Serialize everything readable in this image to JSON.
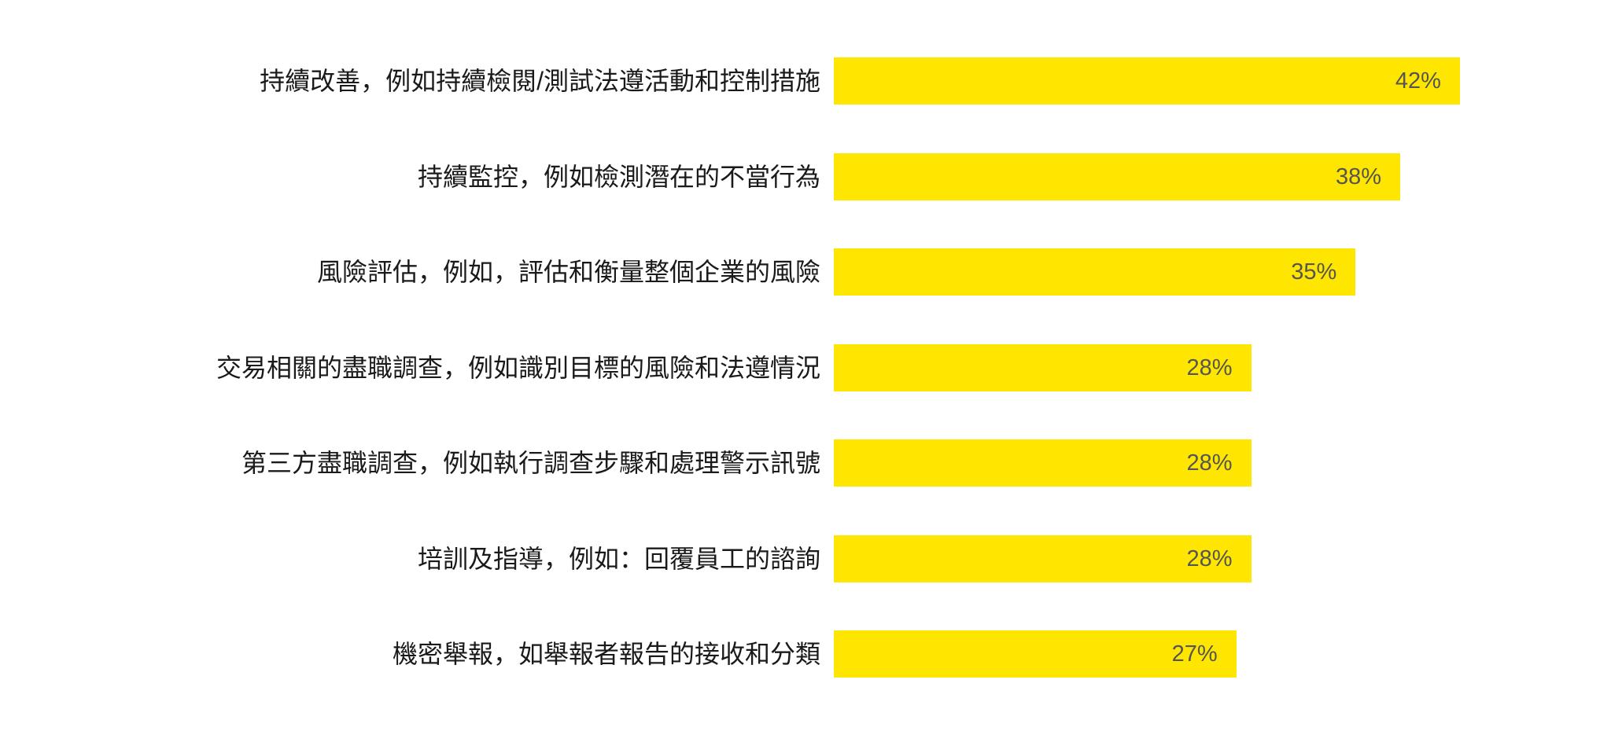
{
  "chart_data": {
    "type": "bar",
    "orientation": "horizontal",
    "categories": [
      "持續改善，例如持續檢閱/測試法遵活動和控制措施",
      "持續監控，例如檢測潛在的不當行為",
      "風險評估，例如，評估和衡量整個企業的風險",
      "交易相關的盡職調查，例如識別目標的風險和法遵情況",
      "第三方盡職調查，例如執行調查步驟和處理警示訊號",
      "培訓及指導，例如：回覆員工的諮詢",
      "機密舉報，如舉報者報告的接收和分類"
    ],
    "values": [
      42,
      38,
      35,
      28,
      28,
      28,
      27
    ],
    "data_labels": [
      "42%",
      "38%",
      "35%",
      "28%",
      "28%",
      "28%",
      "27%"
    ],
    "bar_color": "#FFE600",
    "grid": false,
    "axes_visible": false
  }
}
